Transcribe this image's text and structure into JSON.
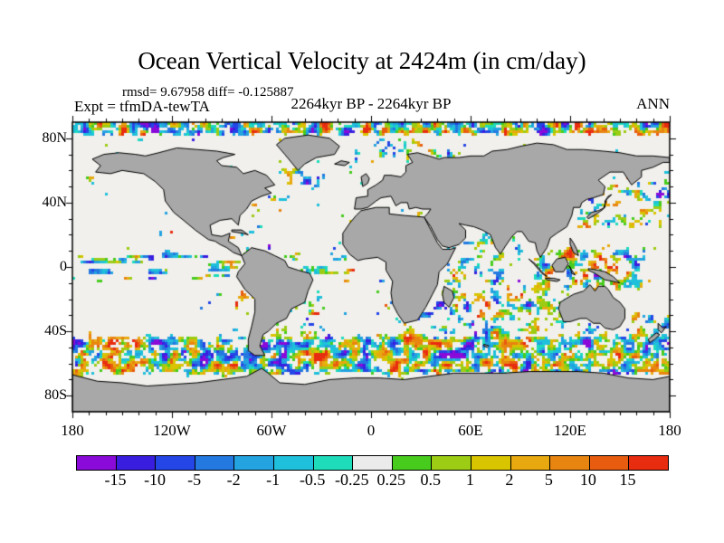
{
  "header": {
    "title": "Ocean Vertical Velocity at 2424m (in cm/day)",
    "stats_line": "rmsd= 9.67958 diff= -0.125887",
    "experiment_label": "Expt = tfmDA-tewTA",
    "period_label": "2264kyr BP - 2264kyr BP",
    "season_label": "ANN"
  },
  "chart_data": {
    "type": "heatmap",
    "title": "Ocean Vertical Velocity at 2424m (in cm/day)",
    "variable": "ocean vertical velocity difference",
    "units": "cm/day",
    "depth": "2424m",
    "stats": {
      "rmsd": 9.67958,
      "diff": -0.125887
    },
    "experiment": "tfmDA-tewTA",
    "period": "2264kyr BP - 2264kyr BP",
    "season": "ANN",
    "projection": "equirectangular",
    "lon_range": [
      -180,
      180
    ],
    "lat_range": [
      -90,
      90
    ],
    "minor_tick_deg": 10,
    "x_tick_labels": [
      {
        "label": "180",
        "value": -180
      },
      {
        "label": "120W",
        "value": -120
      },
      {
        "label": "60W",
        "value": -60
      },
      {
        "label": "0",
        "value": 0
      },
      {
        "label": "60E",
        "value": 60
      },
      {
        "label": "120E",
        "value": 120
      },
      {
        "label": "180",
        "value": 180
      }
    ],
    "y_tick_labels": [
      {
        "label": "80N",
        "value": 80
      },
      {
        "label": "40N",
        "value": 40
      },
      {
        "label": "0",
        "value": 0
      },
      {
        "label": "40S",
        "value": -40
      },
      {
        "label": "80S",
        "value": -80
      }
    ],
    "colorbar": {
      "levels": [
        -15,
        -10,
        -5,
        -2,
        -1,
        -0.5,
        -0.25,
        0.25,
        0.5,
        1,
        2,
        5,
        10,
        15
      ],
      "boundary_labels": [
        "-15",
        "-10",
        "-5",
        "-2",
        "-1",
        "-0.5",
        "-0.25",
        "0.25",
        "0.5",
        "1",
        "2",
        "5",
        "10",
        "15"
      ],
      "colors": [
        "#8a0ad9",
        "#3a1ee0",
        "#2546e6",
        "#2379e0",
        "#23a3e0",
        "#1fc0db",
        "#1edbba",
        "#ebebeb",
        "#47cc1e",
        "#9ccc13",
        "#d9c400",
        "#e8a810",
        "#e88510",
        "#e85c10",
        "#e82c10"
      ]
    },
    "colors": {
      "land": "#a8a8a8",
      "coastline": "#000000",
      "ocean": "#f1f0ec",
      "frame": "#000000"
    },
    "activity_regions": [
      {
        "name": "arctic",
        "lon": [
          -180,
          180
        ],
        "lat": [
          81,
          90
        ],
        "w": 1.0
      },
      {
        "name": "nordic-barents",
        "lon": [
          -15,
          60
        ],
        "lat": [
          63,
          80
        ],
        "w": 0.5
      },
      {
        "name": "labrador-greenland",
        "lon": [
          -65,
          -20
        ],
        "lat": [
          50,
          68
        ],
        "w": 0.5
      },
      {
        "name": "gulf-stream",
        "lon": [
          -80,
          -42
        ],
        "lat": [
          32,
          46
        ],
        "w": 0.45
      },
      {
        "name": "kuroshio-nw-pacific",
        "lon": [
          120,
          180
        ],
        "lat": [
          24,
          50
        ],
        "w": 0.58
      },
      {
        "name": "bering-okhotsk",
        "lon": [
          140,
          180
        ],
        "lat": [
          48,
          62
        ],
        "w": 0.5
      },
      {
        "name": "aleutian",
        "lon": [
          -180,
          -150
        ],
        "lat": [
          45,
          60
        ],
        "w": 0.4
      },
      {
        "name": "california-coast",
        "lon": [
          -132,
          -110
        ],
        "lat": [
          18,
          42
        ],
        "w": 0.35
      },
      {
        "name": "caribbean",
        "lon": [
          -92,
          -55
        ],
        "lat": [
          6,
          26
        ],
        "w": 0.42
      },
      {
        "name": "equatorial-pacific",
        "lon": [
          -180,
          -78
        ],
        "lat": [
          -10,
          10
        ],
        "w": 0.6,
        "streak": true
      },
      {
        "name": "equatorial-atlantic",
        "lon": [
          -52,
          12
        ],
        "lat": [
          -10,
          8
        ],
        "w": 0.55,
        "streak": true
      },
      {
        "name": "tropical-indian",
        "lon": [
          42,
          100
        ],
        "lat": [
          -12,
          14
        ],
        "w": 0.5
      },
      {
        "name": "arabian-bengal",
        "lon": [
          55,
          95
        ],
        "lat": [
          4,
          24
        ],
        "w": 0.4
      },
      {
        "name": "maritime-continent",
        "lon": [
          95,
          168
        ],
        "lat": [
          -16,
          14
        ],
        "w": 0.68
      },
      {
        "name": "south-indian",
        "lon": [
          38,
          122
        ],
        "lat": [
          -44,
          -6
        ],
        "w": 0.6
      },
      {
        "name": "australia-south",
        "lon": [
          108,
          150
        ],
        "lat": [
          -46,
          -33
        ],
        "w": 0.6
      },
      {
        "name": "tasman-nz",
        "lon": [
          145,
          180
        ],
        "lat": [
          -52,
          -28
        ],
        "w": 0.58
      },
      {
        "name": "peru-chile-coast",
        "lon": [
          -84,
          -68
        ],
        "lat": [
          -46,
          -2
        ],
        "w": 0.5
      },
      {
        "name": "brazil-argentina",
        "lon": [
          -66,
          -28
        ],
        "lat": [
          -50,
          -18
        ],
        "w": 0.52
      },
      {
        "name": "benguela",
        "lon": [
          0,
          18
        ],
        "lat": [
          -34,
          -4
        ],
        "w": 0.45
      },
      {
        "name": "agulhas",
        "lon": [
          10,
          45
        ],
        "lat": [
          -46,
          -24
        ],
        "w": 0.6
      },
      {
        "name": "southern-ocean",
        "lon": [
          -180,
          180
        ],
        "lat": [
          -68,
          -42
        ],
        "w": 0.95
      },
      {
        "name": "mediterranean",
        "lon": [
          -5,
          36
        ],
        "lat": [
          30,
          44
        ],
        "w": 0.3
      },
      {
        "name": "nw-africa-canary",
        "lon": [
          -25,
          -8
        ],
        "lat": [
          8,
          34
        ],
        "w": 0.35
      }
    ],
    "land_polygons": {
      "north_america": [
        -168,
        67,
        -163,
        63,
        -166,
        59,
        -157,
        58,
        -150,
        60,
        -137,
        58,
        -130,
        53,
        -125,
        48,
        -124,
        41,
        -119,
        34,
        -113,
        29,
        -106,
        23,
        -98,
        17,
        -94,
        16,
        -91,
        14,
        -87,
        12,
        -83,
        9,
        -78,
        7,
        -80,
        12,
        -86,
        16,
        -85,
        21,
        -90,
        19,
        -96,
        20,
        -97,
        26,
        -91,
        29,
        -84,
        30,
        -80,
        26,
        -79,
        32,
        -75,
        36,
        -72,
        41,
        -66,
        44,
        -60,
        46,
        -64,
        49,
        -58,
        51,
        -63,
        57,
        -70,
        60,
        -77,
        58,
        -81,
        62,
        -90,
        63,
        -93,
        66,
        -89,
        68,
        -82,
        70,
        -93,
        72,
        -105,
        73,
        -117,
        74,
        -128,
        71,
        -136,
        69,
        -142,
        70,
        -152,
        71,
        -161,
        70
      ],
      "greenland": [
        -57,
        76,
        -52,
        70,
        -44,
        60,
        -40,
        64,
        -33,
        68,
        -22,
        70,
        -19,
        75,
        -25,
        80,
        -38,
        82,
        -52,
        80
      ],
      "south_america": [
        -78,
        7,
        -76,
        2,
        -80,
        -3,
        -81,
        -6,
        -76,
        -14,
        -70,
        -20,
        -70,
        -28,
        -72,
        -37,
        -74,
        -45,
        -74,
        -52,
        -70,
        -55,
        -64,
        -55,
        -67,
        -49,
        -65,
        -42,
        -62,
        -40,
        -57,
        -35,
        -51,
        -32,
        -48,
        -26,
        -40,
        -22,
        -38,
        -15,
        -35,
        -8,
        -37,
        -4,
        -44,
        -2,
        -50,
        0,
        -52,
        4,
        -58,
        7,
        -64,
        10,
        -72,
        12
      ],
      "africa": [
        -6,
        35,
        3,
        37,
        11,
        37,
        11,
        33,
        20,
        32,
        32,
        31,
        34,
        27,
        37,
        21,
        40,
        15,
        43,
        11,
        48,
        11,
        51,
        12,
        46,
        2,
        41,
        -3,
        40,
        -11,
        37,
        -17,
        33,
        -25,
        28,
        -33,
        20,
        -35,
        16,
        -29,
        13,
        -23,
        12,
        -16,
        13,
        -9,
        9,
        -2,
        9,
        3,
        4,
        6,
        -4,
        5,
        -8,
        4,
        -13,
        8,
        -17,
        14,
        -17,
        21,
        -13,
        27,
        -9,
        32
      ],
      "eurasia": [
        -10,
        36,
        -9,
        43,
        -2,
        44,
        -2,
        48,
        3,
        51,
        7,
        54,
        8,
        57,
        12,
        57,
        18,
        56,
        21,
        59,
        21,
        63,
        25,
        65,
        22,
        70,
        28,
        71,
        35,
        69,
        41,
        67,
        44,
        68,
        53,
        68,
        60,
        69,
        68,
        69,
        73,
        72,
        82,
        73,
        90,
        75,
        100,
        77,
        110,
        76,
        118,
        73,
        128,
        73,
        140,
        72,
        150,
        71,
        160,
        69,
        170,
        69,
        180,
        68,
        180,
        65,
        176,
        65,
        170,
        62,
        163,
        60,
        163,
        56,
        157,
        51,
        152,
        59,
        144,
        59,
        137,
        54,
        141,
        50,
        140,
        45,
        134,
        43,
        130,
        42,
        127,
        40,
        126,
        37,
        122,
        37,
        121,
        32,
        118,
        25,
        112,
        21,
        108,
        18,
        106,
        12,
        104,
        9,
        102,
        6,
        100,
        10,
        99,
        15,
        95,
        16,
        91,
        22,
        88,
        22,
        85,
        19,
        81,
        13,
        78,
        8,
        75,
        12,
        72,
        20,
        67,
        23,
        62,
        25,
        57,
        26,
        53,
        27,
        57,
        23,
        57,
        18,
        53,
        14,
        47,
        12,
        43,
        13,
        40,
        17,
        36,
        25,
        32,
        31,
        34,
        33,
        36,
        36,
        31,
        36,
        27,
        37,
        23,
        36,
        22,
        40,
        18,
        40,
        15,
        38,
        12,
        44,
        6,
        43,
        3,
        41,
        -2,
        37,
        -6,
        36
      ],
      "australia": [
        114,
        -22,
        113,
        -26,
        116,
        -34,
        120,
        -34,
        126,
        -32,
        130,
        -32,
        134,
        -35,
        138,
        -35,
        141,
        -38,
        146,
        -39,
        150,
        -37,
        153,
        -32,
        153,
        -26,
        150,
        -22,
        146,
        -19,
        143,
        -14,
        141,
        -12,
        137,
        -12,
        135,
        -15,
        132,
        -11,
        128,
        -15,
        122,
        -17,
        117,
        -20
      ],
      "antarctica": [
        -180,
        -67,
        -165,
        -71,
        -150,
        -72,
        -135,
        -74,
        -120,
        -73,
        -105,
        -72,
        -90,
        -70,
        -75,
        -68,
        -66,
        -63,
        -62,
        -66,
        -55,
        -72,
        -40,
        -73,
        -25,
        -70,
        -10,
        -69,
        5,
        -69,
        20,
        -70,
        35,
        -68,
        50,
        -66,
        65,
        -66,
        80,
        -66,
        95,
        -65,
        110,
        -65,
        125,
        -65,
        140,
        -66,
        155,
        -69,
        170,
        -70,
        180,
        -68,
        180,
        -90,
        -180,
        -90
      ],
      "madagascar": [
        44,
        -12,
        49,
        -15,
        50,
        -19,
        47,
        -25,
        44,
        -22,
        43,
        -17
      ],
      "uk": [
        -5,
        50,
        -2,
        52,
        -1,
        55,
        -3,
        58,
        -6,
        56
      ],
      "iceland": [
        -22,
        64,
        -16,
        63,
        -13,
        65,
        -18,
        66
      ],
      "japan": [
        130,
        31,
        133,
        34,
        137,
        35,
        141,
        37,
        141,
        41,
        143,
        44,
        145,
        45,
        142,
        42,
        140,
        36,
        136,
        33,
        131,
        30
      ],
      "borneo": [
        109,
        1,
        112,
        5,
        117,
        6,
        119,
        2,
        116,
        -3,
        111,
        -3
      ],
      "sumatra": [
        95,
        5,
        99,
        2,
        103,
        -3,
        106,
        -6,
        103,
        -4,
        98,
        2
      ],
      "java": [
        105,
        -7,
        110,
        -7,
        114,
        -8,
        112,
        -9,
        106,
        -8
      ],
      "sulawesi": [
        119,
        1,
        121,
        -2,
        123,
        -5,
        121,
        -4,
        120,
        0
      ],
      "new_guinea": [
        131,
        -1,
        137,
        -2,
        141,
        -3,
        146,
        -6,
        150,
        -10,
        146,
        -9,
        141,
        -8,
        135,
        -4,
        131,
        -2
      ],
      "nz_north": [
        173,
        -35,
        176,
        -38,
        178,
        -37,
        175,
        -41,
        173,
        -39
      ],
      "nz_south": [
        167,
        -45,
        172,
        -41,
        174,
        -42,
        171,
        -45,
        168,
        -47
      ],
      "philippines": [
        120,
        18,
        122,
        15,
        124,
        11,
        125,
        7,
        122,
        9,
        120,
        14
      ],
      "cuba": [
        -84,
        22,
        -78,
        21,
        -74,
        20,
        -78,
        23,
        -84,
        23
      ],
      "kerguelen": [
        68,
        -48,
        71,
        -49,
        70,
        -50,
        68,
        -49
      ]
    }
  }
}
